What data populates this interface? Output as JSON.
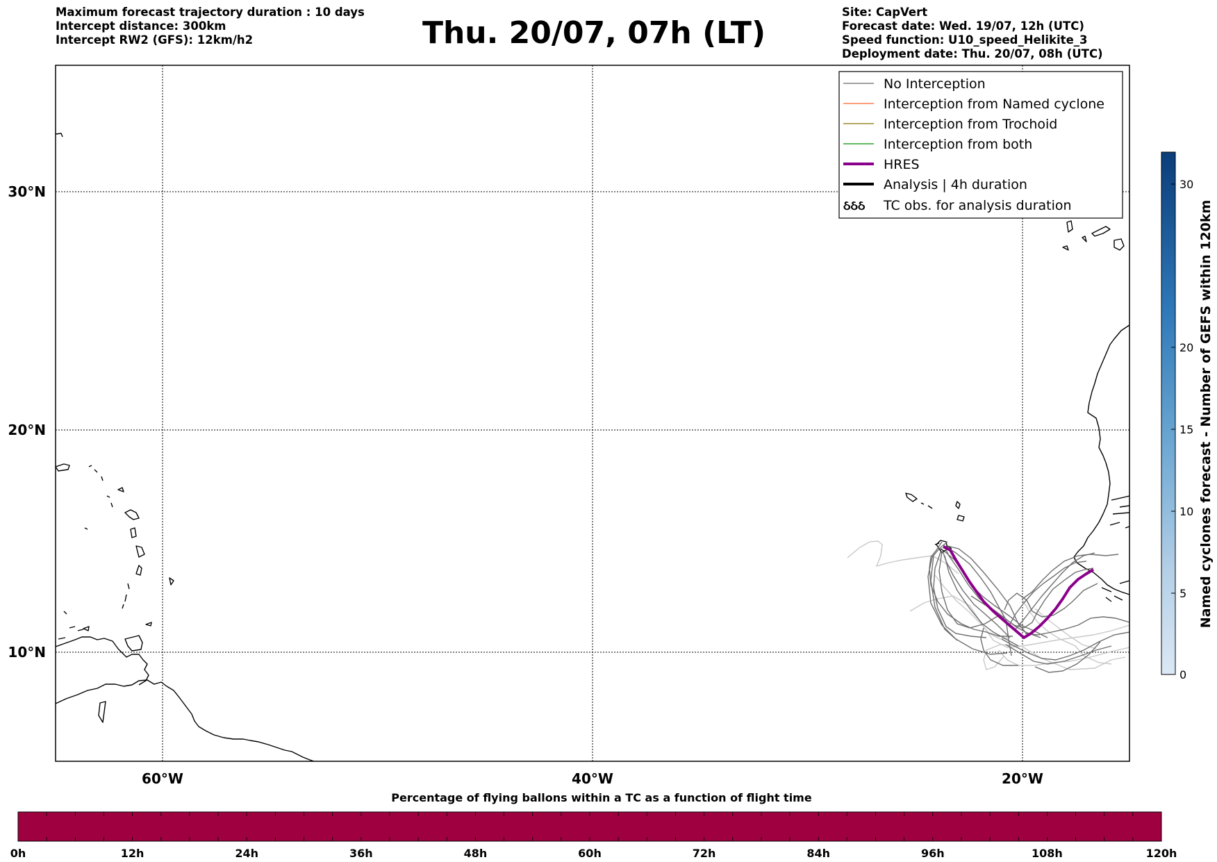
{
  "header": {
    "left": [
      "Maximum forecast trajectory duration : 10 days",
      "Intercept distance: 300km",
      "Intercept RW2 (GFS):  12km/h2"
    ],
    "title": "Thu. 20/07, 07h (LT)",
    "right": [
      "Site: CapVert",
      "Forecast date: Wed. 19/07, 12h (UTC)",
      "Speed function: U10_speed_Helikite_3",
      "Deployment date: Thu. 20/07, 08h (UTC)"
    ]
  },
  "map": {
    "lon_ticks": [
      "60°W",
      "40°W",
      "20°W"
    ],
    "lat_ticks": [
      "30°N",
      "20°N",
      "10°N"
    ]
  },
  "legend": {
    "items": [
      {
        "label": "No Interception",
        "color": "#808080",
        "style": "thin"
      },
      {
        "label": "Interception from Named cyclone",
        "color": "#ff7f50",
        "style": "thin"
      },
      {
        "label": "Interception from Trochoid",
        "color": "#9a8a2a",
        "style": "thin"
      },
      {
        "label": "Interception from both",
        "color": "#2ca02c",
        "style": "thin"
      },
      {
        "label": "HRES",
        "color": "#8b008b",
        "style": "thick"
      },
      {
        "label": "Analysis | 4h duration",
        "color": "#000000",
        "style": "thick"
      },
      {
        "label": "TC obs. for analysis duration",
        "color": "#000000",
        "style": "symbol",
        "symbol": "ઠઠઠ"
      }
    ]
  },
  "right_colorbar": {
    "label": "Named cyclones forecast - Number of GEFS within 120km",
    "ticks": [
      "0",
      "5",
      "10",
      "15",
      "20",
      "30"
    ]
  },
  "bottom_colorbar": {
    "title": "Percentage of flying ballons within a TC as a function of flight time",
    "ticks": [
      "0h",
      "12h",
      "24h",
      "36h",
      "48h",
      "60h",
      "72h",
      "84h",
      "96h",
      "108h",
      "120h"
    ],
    "fill_color": "#9e0040"
  }
}
